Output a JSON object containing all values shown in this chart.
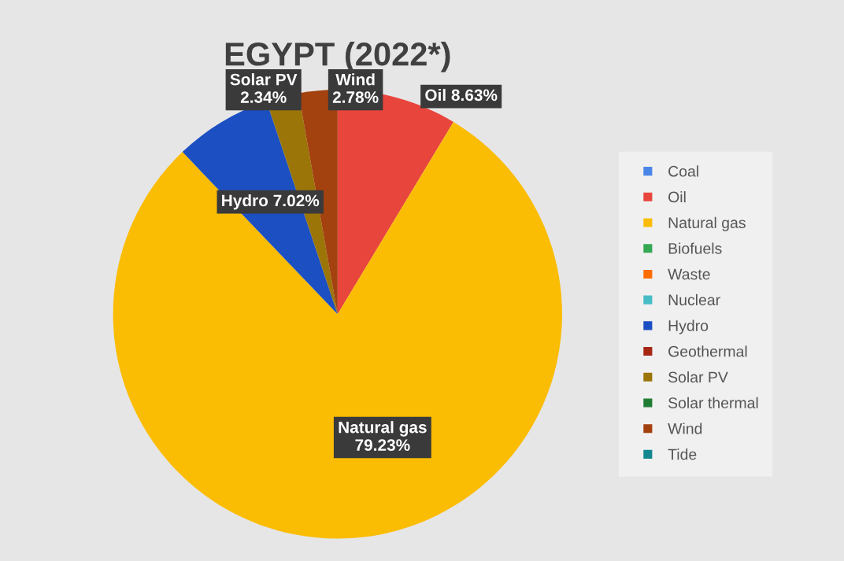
{
  "chart_data": {
    "type": "pie",
    "title": "EGYPT (2022*)",
    "categories": [
      "Coal",
      "Oil",
      "Natural gas",
      "Biofuels",
      "Waste",
      "Nuclear",
      "Hydro",
      "Geothermal",
      "Solar PV",
      "Solar thermal",
      "Wind",
      "Tide"
    ],
    "values": [
      0,
      8.63,
      79.23,
      0,
      0,
      0,
      7.02,
      0,
      2.34,
      0,
      2.78,
      0
    ],
    "colors": [
      "#4a86e8",
      "#e8453c",
      "#fbbc04",
      "#34a853",
      "#ff6d01",
      "#46bdc6",
      "#1c4fc2",
      "#a52714",
      "#9c7508",
      "#1e7b34",
      "#a3410f",
      "#12878f"
    ],
    "value_labels": [
      null,
      "Oil 8.63%",
      "Natural gas\n79.23%",
      null,
      null,
      null,
      "Hydro 7.02%",
      null,
      "Solar PV\n2.34%",
      null,
      "Wind\n2.78%",
      null
    ],
    "legend": "right"
  }
}
